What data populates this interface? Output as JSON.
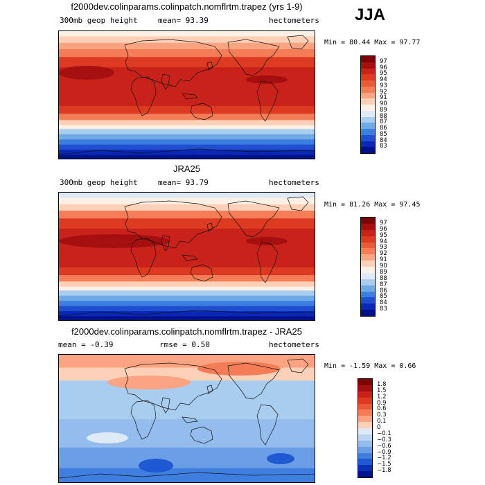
{
  "season": "JJA",
  "panels": [
    {
      "title": "f2000dev.colinparams.colinpatch.nomflrtm.trapez (yrs 1-9)",
      "left_label": "300mb geop height",
      "center_label": "mean=  93.39",
      "right_label": "hectometers",
      "minmax": "Min =  80.44 Max =  97.77",
      "colorbar_labels": [
        "97",
        "96",
        "95",
        "94",
        "93",
        "92",
        "91",
        "90",
        "89",
        "88",
        "87",
        "86",
        "85",
        "84",
        "83"
      ],
      "colors": [
        "#7f0000",
        "#a50f0f",
        "#c8221a",
        "#dd3a22",
        "#ea5a36",
        "#f47c57",
        "#fba482",
        "#fdd0b8",
        "#fdf0e6",
        "#deebf7",
        "#a9cdef",
        "#6fa9e6",
        "#3d7fe0",
        "#1f4fd0",
        "#0a28b5",
        "#00108a"
      ]
    },
    {
      "title": "JRA25",
      "left_label": "300mb geop height",
      "center_label": "mean=  93.79",
      "right_label": "hectometers",
      "minmax": "Min =  81.26 Max =  97.45",
      "colorbar_labels": [
        "97",
        "96",
        "95",
        "94",
        "93",
        "92",
        "91",
        "90",
        "89",
        "88",
        "87",
        "86",
        "85",
        "84",
        "83"
      ],
      "colors": [
        "#7f0000",
        "#a50f0f",
        "#c8221a",
        "#dd3a22",
        "#ea5a36",
        "#f47c57",
        "#fba482",
        "#fdd0b8",
        "#fdf0e6",
        "#deebf7",
        "#a9cdef",
        "#6fa9e6",
        "#3d7fe0",
        "#1f4fd0",
        "#0a28b5",
        "#00108a"
      ]
    },
    {
      "title": "f2000dev.colinparams.colinpatch.nomflrtm.trapez - JRA25",
      "left_label": "mean =  -0.39",
      "center_label": "rmse =   0.50",
      "right_label": "hectometers",
      "minmax": "Min = -1.59 Max =   0.66",
      "colorbar_labels": [
        "1.8",
        "1.5",
        "1.2",
        "0.9",
        "0.6",
        "0.3",
        "0.1",
        "0",
        "−0.1",
        "−0.3",
        "−0.6",
        "−0.9",
        "−1.2",
        "−1.5",
        "−1.8"
      ],
      "colors": [
        "#7f0000",
        "#a50f0f",
        "#c8221a",
        "#dd3a22",
        "#ea5a36",
        "#f47c57",
        "#fba482",
        "#fdd0b8",
        "#deebf7",
        "#bcd6f2",
        "#94bdee",
        "#6a9fe8",
        "#3f7fe0",
        "#1f5ad2",
        "#0a32b8",
        "#00138f"
      ]
    }
  ]
}
